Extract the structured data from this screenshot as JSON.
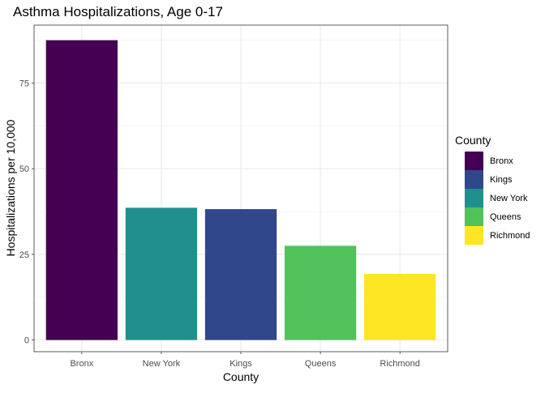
{
  "chart_data": {
    "type": "bar",
    "title": "Asthma Hospitalizations, Age 0-17",
    "xlabel": "County",
    "ylabel": "Hospitalizations per 10,000",
    "categories": [
      "Bronx",
      "New York",
      "Kings",
      "Queens",
      "Richmond"
    ],
    "values": [
      87.5,
      38.6,
      38.2,
      27.5,
      19.3
    ],
    "bar_colors": [
      "#440154",
      "#21908C",
      "#31478C",
      "#52C25A",
      "#FDE725"
    ],
    "ylim": [
      -3.4,
      91.9
    ],
    "yticks": [
      0,
      25,
      50,
      75
    ],
    "ytick_labels": [
      "0",
      "25",
      "50",
      "75"
    ],
    "grid": true,
    "legend": {
      "title": "County",
      "position": "right",
      "entries": [
        {
          "label": "Bronx",
          "color": "#440154"
        },
        {
          "label": "Kings",
          "color": "#31478C"
        },
        {
          "label": "New York",
          "color": "#21908C"
        },
        {
          "label": "Queens",
          "color": "#52C25A"
        },
        {
          "label": "Richmond",
          "color": "#FDE725"
        }
      ]
    }
  }
}
